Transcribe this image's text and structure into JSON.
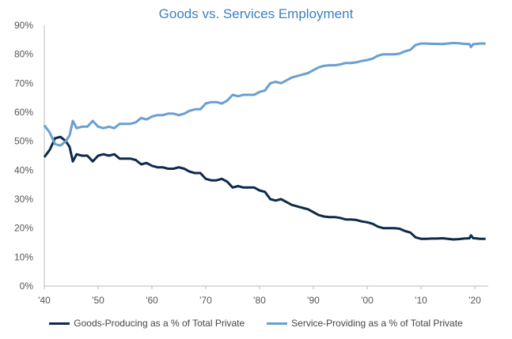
{
  "chart_data": {
    "type": "line",
    "title": "Goods vs. Services Employment",
    "xlabel": "",
    "ylabel": "",
    "xlim": [
      1940,
      2022.5
    ],
    "ylim": [
      0,
      90
    ],
    "x_ticks": [
      {
        "value": 1940,
        "label": "'40"
      },
      {
        "value": 1950,
        "label": "'50"
      },
      {
        "value": 1960,
        "label": "'60"
      },
      {
        "value": 1970,
        "label": "'70"
      },
      {
        "value": 1980,
        "label": "'80"
      },
      {
        "value": 1990,
        "label": "'90"
      },
      {
        "value": 2000,
        "label": "'00"
      },
      {
        "value": 2010,
        "label": "'10"
      },
      {
        "value": 2020,
        "label": "'20"
      }
    ],
    "y_ticks": [
      {
        "value": 0,
        "label": "0%"
      },
      {
        "value": 10,
        "label": "10%"
      },
      {
        "value": 20,
        "label": "20%"
      },
      {
        "value": 30,
        "label": "30%"
      },
      {
        "value": 40,
        "label": "40%"
      },
      {
        "value": 50,
        "label": "50%"
      },
      {
        "value": 60,
        "label": "60%"
      },
      {
        "value": 70,
        "label": "70%"
      },
      {
        "value": 80,
        "label": "80%"
      },
      {
        "value": 90,
        "label": "90%"
      }
    ],
    "grid": false,
    "legend_position": "bottom",
    "series": [
      {
        "name": "Goods-Producing as a % of Total Private",
        "color": "#0d2a4a",
        "points": [
          [
            1940,
            44.5
          ],
          [
            1941,
            47
          ],
          [
            1942,
            51
          ],
          [
            1943,
            51.5
          ],
          [
            1944,
            50
          ],
          [
            1944.7,
            48
          ],
          [
            1945.3,
            43
          ],
          [
            1946,
            45.5
          ],
          [
            1947,
            45
          ],
          [
            1948,
            45
          ],
          [
            1949,
            43
          ],
          [
            1950,
            45
          ],
          [
            1951,
            45.5
          ],
          [
            1952,
            45
          ],
          [
            1953,
            45.5
          ],
          [
            1954,
            44
          ],
          [
            1955,
            44
          ],
          [
            1956,
            44
          ],
          [
            1957,
            43.5
          ],
          [
            1958,
            42
          ],
          [
            1959,
            42.5
          ],
          [
            1960,
            41.5
          ],
          [
            1961,
            41
          ],
          [
            1962,
            41
          ],
          [
            1963,
            40.5
          ],
          [
            1964,
            40.5
          ],
          [
            1965,
            41
          ],
          [
            1966,
            40.5
          ],
          [
            1967,
            39.5
          ],
          [
            1968,
            39
          ],
          [
            1969,
            39
          ],
          [
            1970,
            37
          ],
          [
            1971,
            36.5
          ],
          [
            1972,
            36.5
          ],
          [
            1973,
            37
          ],
          [
            1974,
            36
          ],
          [
            1975,
            34
          ],
          [
            1976,
            34.5
          ],
          [
            1977,
            34
          ],
          [
            1978,
            34
          ],
          [
            1979,
            34
          ],
          [
            1980,
            33
          ],
          [
            1981,
            32.5
          ],
          [
            1982,
            30
          ],
          [
            1983,
            29.5
          ],
          [
            1984,
            30
          ],
          [
            1985,
            29
          ],
          [
            1986,
            28
          ],
          [
            1987,
            27.5
          ],
          [
            1988,
            27
          ],
          [
            1989,
            26.5
          ],
          [
            1990,
            25.5
          ],
          [
            1991,
            24.5
          ],
          [
            1992,
            24
          ],
          [
            1993,
            23.8
          ],
          [
            1994,
            23.8
          ],
          [
            1995,
            23.5
          ],
          [
            1996,
            23
          ],
          [
            1997,
            23
          ],
          [
            1998,
            22.8
          ],
          [
            1999,
            22.3
          ],
          [
            2000,
            22
          ],
          [
            2001,
            21.5
          ],
          [
            2002,
            20.5
          ],
          [
            2003,
            20
          ],
          [
            2004,
            20
          ],
          [
            2005,
            20
          ],
          [
            2006,
            19.8
          ],
          [
            2007,
            19
          ],
          [
            2008,
            18.5
          ],
          [
            2009,
            16.8
          ],
          [
            2010,
            16.3
          ],
          [
            2011,
            16.3
          ],
          [
            2012,
            16.4
          ],
          [
            2013,
            16.4
          ],
          [
            2014,
            16.5
          ],
          [
            2015,
            16.3
          ],
          [
            2016,
            16.1
          ],
          [
            2017,
            16.2
          ],
          [
            2018,
            16.4
          ],
          [
            2019,
            16.5
          ],
          [
            2019.3,
            17.5
          ],
          [
            2019.7,
            16.5
          ],
          [
            2020,
            16.5
          ],
          [
            2021,
            16.3
          ],
          [
            2022,
            16.3
          ]
        ]
      },
      {
        "name": "Service-Providing as a % of Total Private",
        "color": "#6a9fd0",
        "points": [
          [
            1940,
            55.5
          ],
          [
            1941,
            53
          ],
          [
            1942,
            49
          ],
          [
            1943,
            48.5
          ],
          [
            1944,
            50
          ],
          [
            1944.7,
            52
          ],
          [
            1945.3,
            57
          ],
          [
            1946,
            54.5
          ],
          [
            1947,
            55
          ],
          [
            1948,
            55
          ],
          [
            1949,
            57
          ],
          [
            1950,
            55
          ],
          [
            1951,
            54.5
          ],
          [
            1952,
            55
          ],
          [
            1953,
            54.5
          ],
          [
            1954,
            56
          ],
          [
            1955,
            56
          ],
          [
            1956,
            56
          ],
          [
            1957,
            56.5
          ],
          [
            1958,
            58
          ],
          [
            1959,
            57.5
          ],
          [
            1960,
            58.5
          ],
          [
            1961,
            59
          ],
          [
            1962,
            59
          ],
          [
            1963,
            59.5
          ],
          [
            1964,
            59.5
          ],
          [
            1965,
            59
          ],
          [
            1966,
            59.5
          ],
          [
            1967,
            60.5
          ],
          [
            1968,
            61
          ],
          [
            1969,
            61
          ],
          [
            1970,
            63
          ],
          [
            1971,
            63.5
          ],
          [
            1972,
            63.5
          ],
          [
            1973,
            63
          ],
          [
            1974,
            64
          ],
          [
            1975,
            66
          ],
          [
            1976,
            65.5
          ],
          [
            1977,
            66
          ],
          [
            1978,
            66
          ],
          [
            1979,
            66
          ],
          [
            1980,
            67
          ],
          [
            1981,
            67.5
          ],
          [
            1982,
            70
          ],
          [
            1983,
            70.5
          ],
          [
            1984,
            70
          ],
          [
            1985,
            71
          ],
          [
            1986,
            72
          ],
          [
            1987,
            72.5
          ],
          [
            1988,
            73
          ],
          [
            1989,
            73.5
          ],
          [
            1990,
            74.5
          ],
          [
            1991,
            75.5
          ],
          [
            1992,
            76
          ],
          [
            1993,
            76.2
          ],
          [
            1994,
            76.2
          ],
          [
            1995,
            76.5
          ],
          [
            1996,
            77
          ],
          [
            1997,
            77
          ],
          [
            1998,
            77.2
          ],
          [
            1999,
            77.7
          ],
          [
            2000,
            78
          ],
          [
            2001,
            78.5
          ],
          [
            2002,
            79.5
          ],
          [
            2003,
            80
          ],
          [
            2004,
            80
          ],
          [
            2005,
            80
          ],
          [
            2006,
            80.2
          ],
          [
            2007,
            81
          ],
          [
            2008,
            81.5
          ],
          [
            2009,
            83.2
          ],
          [
            2010,
            83.7
          ],
          [
            2011,
            83.7
          ],
          [
            2012,
            83.6
          ],
          [
            2013,
            83.6
          ],
          [
            2014,
            83.5
          ],
          [
            2015,
            83.7
          ],
          [
            2016,
            83.9
          ],
          [
            2017,
            83.8
          ],
          [
            2018,
            83.6
          ],
          [
            2019,
            83.5
          ],
          [
            2019.3,
            82.5
          ],
          [
            2019.7,
            83.5
          ],
          [
            2020,
            83.5
          ],
          [
            2021,
            83.7
          ],
          [
            2022,
            83.7
          ]
        ]
      }
    ]
  }
}
